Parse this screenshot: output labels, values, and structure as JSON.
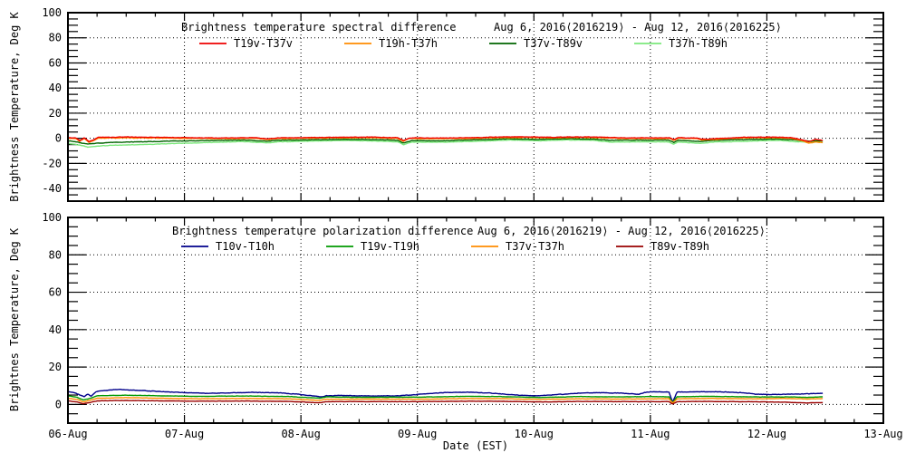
{
  "page": {
    "background": "#ffffff"
  },
  "chart_data": [
    {
      "type": "line",
      "title": "Brightness temperature spectral difference",
      "date_range": "Aug  6, 2016⟨2016219⟩ - Aug 12, 2016⟨2016225⟩",
      "ylabel": "Brightness Temperature, Deg K",
      "ylim": [
        -50,
        100
      ],
      "yticks": [
        100,
        80,
        60,
        40,
        20,
        0,
        -20,
        -40
      ],
      "grid": "dotted",
      "legend_position": "top-inside",
      "series": [
        {
          "name": "T37h-T89h",
          "color": "#7ce87c",
          "noise": 0.3,
          "x": [
            0,
            0.07,
            0.12,
            0.17,
            0.25,
            0.4,
            0.6,
            0.9,
            1.2,
            1.5,
            1.72,
            1.8,
            2.1,
            2.4,
            2.7,
            2.83,
            2.88,
            2.95,
            3.2,
            3.5,
            3.8,
            4.05,
            4.25,
            4.5,
            4.65,
            4.9,
            5.16,
            5.2,
            5.24,
            5.44,
            5.55,
            5.9,
            6.1,
            6.25,
            6.36,
            6.48
          ],
          "y": [
            -4.0,
            -4.8,
            -5.8,
            -7.0,
            -6.2,
            -5.6,
            -5.0,
            -4.2,
            -3.4,
            -2.6,
            -3.6,
            -2.8,
            -2.2,
            -1.6,
            -2.4,
            -2.8,
            -5.0,
            -3.0,
            -3.2,
            -2.4,
            -1.3,
            -2.0,
            -1.3,
            -1.5,
            -3.0,
            -2.8,
            -2.9,
            -4.6,
            -2.9,
            -4.0,
            -2.9,
            -2.2,
            -1.6,
            -2.6,
            -3.2,
            -2.8
          ]
        },
        {
          "name": "T37v-T89v",
          "color": "#006400",
          "noise": 0.3,
          "x": [
            0,
            0.07,
            0.12,
            0.17,
            0.25,
            0.4,
            0.6,
            0.9,
            1.2,
            1.5,
            1.72,
            1.8,
            2.1,
            2.4,
            2.7,
            2.83,
            2.88,
            2.95,
            3.2,
            3.5,
            3.8,
            4.05,
            4.25,
            4.5,
            4.65,
            4.9,
            5.16,
            5.2,
            5.24,
            5.44,
            5.55,
            5.9,
            6.1,
            6.25,
            6.36,
            6.48
          ],
          "y": [
            -2.0,
            -2.8,
            -3.8,
            -4.6,
            -3.8,
            -3.2,
            -2.8,
            -2.2,
            -1.8,
            -1.4,
            -2.3,
            -1.5,
            -1.2,
            -0.8,
            -1.2,
            -1.5,
            -3.8,
            -1.8,
            -2.0,
            -1.2,
            -0.4,
            -0.9,
            -0.4,
            -0.6,
            -1.6,
            -1.4,
            -1.5,
            -3.2,
            -1.6,
            -2.6,
            -1.6,
            -0.8,
            -0.6,
            -1.4,
            -2.2,
            -2.0
          ]
        },
        {
          "name": "T19h-T37h",
          "color": "#ff8c00",
          "noise": 0.3,
          "x": [
            0,
            0.07,
            0.1,
            0.14,
            0.18,
            0.22,
            0.26,
            0.5,
            0.8,
            1.1,
            1.4,
            1.6,
            1.72,
            1.8,
            2.0,
            2.3,
            2.6,
            2.83,
            2.88,
            2.93,
            3.1,
            3.4,
            3.7,
            3.95,
            4.15,
            4.35,
            4.6,
            4.75,
            5.0,
            5.16,
            5.2,
            5.24,
            5.4,
            5.44,
            5.8,
            6.05,
            6.2,
            6.3,
            6.36,
            6.42,
            6.48
          ],
          "y": [
            0.0,
            -0.3,
            -2.4,
            -0.1,
            -3.2,
            -1.8,
            0.2,
            0.4,
            0.2,
            -0.1,
            -0.2,
            0.0,
            -1.0,
            -0.2,
            0.0,
            0.3,
            0.5,
            -0.1,
            -2.3,
            -0.2,
            -0.3,
            -0.1,
            0.5,
            0.7,
            0.3,
            0.7,
            0.4,
            -0.1,
            -0.2,
            -0.1,
            -1.4,
            -0.1,
            -0.2,
            -1.3,
            0.3,
            0.5,
            0.1,
            -1.8,
            -4.0,
            -2.8,
            -3.4
          ]
        },
        {
          "name": "T19v-T37v",
          "color": "#ee0000",
          "noise": 0.3,
          "x": [
            0,
            0.07,
            0.1,
            0.14,
            0.18,
            0.22,
            0.26,
            0.5,
            0.8,
            1.1,
            1.4,
            1.6,
            1.72,
            1.8,
            2.0,
            2.3,
            2.6,
            2.83,
            2.88,
            2.93,
            3.1,
            3.4,
            3.7,
            3.95,
            4.15,
            4.35,
            4.6,
            4.75,
            5.0,
            5.16,
            5.2,
            5.24,
            5.4,
            5.44,
            5.8,
            6.05,
            6.2,
            6.3,
            6.36,
            6.42,
            6.48
          ],
          "y": [
            0.5,
            0.2,
            -1.8,
            0.4,
            -2.6,
            -1.2,
            0.8,
            1.0,
            0.8,
            0.4,
            0.3,
            0.5,
            -0.5,
            0.3,
            0.5,
            0.8,
            1.0,
            0.4,
            -1.8,
            0.3,
            0.2,
            0.4,
            1.0,
            1.2,
            0.8,
            1.2,
            0.9,
            0.4,
            0.3,
            0.4,
            -0.9,
            0.4,
            0.3,
            -0.8,
            0.8,
            1.0,
            0.6,
            -1.2,
            -2.6,
            -0.8,
            -1.8
          ]
        }
      ],
      "legend_order": [
        "T19v-T37v",
        "T19h-T37h",
        "T37v-T89v",
        "T37h-T89h"
      ]
    },
    {
      "type": "line",
      "title": "Brightness temperature polarization difference",
      "date_range": "Aug  6, 2016⟨2016219⟩ - Aug 12, 2016⟨2016225⟩",
      "ylabel": "Brightnes Temperature, Deg K",
      "xlabel": "Date (EST)",
      "ylim": [
        -10,
        100
      ],
      "yticks": [
        100,
        80,
        60,
        40,
        20,
        0
      ],
      "xlim_days": [
        0,
        7
      ],
      "xticklabels": [
        "06-Aug",
        "07-Aug",
        "08-Aug",
        "09-Aug",
        "10-Aug",
        "11-Aug",
        "12-Aug",
        "13-Aug"
      ],
      "grid": "dotted",
      "legend_position": "top-inside",
      "series": [
        {
          "name": "T10v-T10h",
          "color": "#00008b",
          "noise": 0.22,
          "x": [
            0,
            0.06,
            0.11,
            0.14,
            0.17,
            0.2,
            0.24,
            0.3,
            0.42,
            0.55,
            0.7,
            0.9,
            1.05,
            1.2,
            1.4,
            1.6,
            1.8,
            1.95,
            2.1,
            2.18,
            2.22,
            2.35,
            2.6,
            2.85,
            3.05,
            3.25,
            3.45,
            3.65,
            3.85,
            4.0,
            4.15,
            4.35,
            4.55,
            4.75,
            4.9,
            4.97,
            5.05,
            5.16,
            5.19,
            5.23,
            5.4,
            5.6,
            5.8,
            5.92,
            6.05,
            6.2,
            6.35,
            6.48
          ],
          "y": [
            6.8,
            6.2,
            4.8,
            4.2,
            5.6,
            4.4,
            6.8,
            7.4,
            8.0,
            7.7,
            7.2,
            6.6,
            6.2,
            5.9,
            6.2,
            6.4,
            6.2,
            5.6,
            4.6,
            4.0,
            4.6,
            4.8,
            4.5,
            4.6,
            5.6,
            6.4,
            6.5,
            6.0,
            5.0,
            4.6,
            5.0,
            5.9,
            6.3,
            6.0,
            5.4,
            6.6,
            6.8,
            6.6,
            1.2,
            6.6,
            6.8,
            6.7,
            6.2,
            5.4,
            5.3,
            5.5,
            5.7,
            6.0
          ]
        },
        {
          "name": "T19v-T19h",
          "color": "#009900",
          "noise": 0.13,
          "x": [
            0,
            0.08,
            0.13,
            0.18,
            0.25,
            0.5,
            0.8,
            1.1,
            1.5,
            1.9,
            2.16,
            2.22,
            2.5,
            3.0,
            3.4,
            3.7,
            4.05,
            4.4,
            4.75,
            5.0,
            5.16,
            5.19,
            5.23,
            5.5,
            5.9,
            6.15,
            6.35,
            6.48
          ],
          "y": [
            4.6,
            3.8,
            2.4,
            3.0,
            4.6,
            4.9,
            4.6,
            4.3,
            4.5,
            4.2,
            3.3,
            4.0,
            3.8,
            3.9,
            4.3,
            4.2,
            3.7,
            4.2,
            4.0,
            4.2,
            4.1,
            0.9,
            4.1,
            4.3,
            4.0,
            4.0,
            3.8,
            4.1
          ]
        },
        {
          "name": "T37v-T37h",
          "color": "#ff8c00",
          "noise": 0.13,
          "x": [
            0,
            0.08,
            0.13,
            0.18,
            0.25,
            0.5,
            0.8,
            1.1,
            1.5,
            1.9,
            2.16,
            2.22,
            2.5,
            3.0,
            3.4,
            3.7,
            4.05,
            4.4,
            4.75,
            5.0,
            5.16,
            5.19,
            5.23,
            5.5,
            5.9,
            6.15,
            6.35,
            6.48
          ],
          "y": [
            3.3,
            2.6,
            1.4,
            2.0,
            3.3,
            3.6,
            3.3,
            3.0,
            3.2,
            3.0,
            2.2,
            2.8,
            2.8,
            2.8,
            3.1,
            3.1,
            2.7,
            3.0,
            2.9,
            3.0,
            3.0,
            0.7,
            3.0,
            3.2,
            3.0,
            3.2,
            2.9,
            3.1
          ]
        },
        {
          "name": "T89v-T89h",
          "color": "#990000",
          "noise": 0.13,
          "x": [
            0,
            0.08,
            0.13,
            0.18,
            0.25,
            0.5,
            0.8,
            1.1,
            1.5,
            1.9,
            2.16,
            2.22,
            2.5,
            3.0,
            3.4,
            3.7,
            4.05,
            4.4,
            4.75,
            5.0,
            5.16,
            5.19,
            5.23,
            5.5,
            5.9,
            6.15,
            6.35,
            6.48
          ],
          "y": [
            1.9,
            1.3,
            0.4,
            0.9,
            1.9,
            2.1,
            1.9,
            1.7,
            1.8,
            1.6,
            0.9,
            1.5,
            1.5,
            1.5,
            1.7,
            1.7,
            1.3,
            1.6,
            1.5,
            1.5,
            1.5,
            0.2,
            1.5,
            1.6,
            1.4,
            1.2,
            0.8,
            1.0
          ]
        }
      ],
      "legend_order": [
        "T10v-T10h",
        "T19v-T19h",
        "T37v-T37h",
        "T89v-T89h"
      ]
    }
  ]
}
